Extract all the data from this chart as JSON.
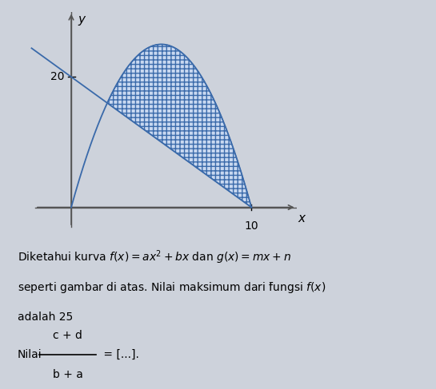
{
  "background_color": "#cdd2db",
  "parabola_color": "#3a6aaa",
  "line_color": "#3a6aaa",
  "fill_facecolor": "#c8d8f0",
  "fill_edgecolor": "#3a6aaa",
  "hatch_pattern": "xxx",
  "x_label": "x",
  "y_label": "y",
  "x_tick_label": "10",
  "y_tick_label": "20",
  "parabola_roots": [
    0,
    10
  ],
  "parabola_max": 25,
  "line_y_intercept": 20,
  "line_x_intercept": 10,
  "x_int1": 2,
  "x_int2": 10,
  "text_line1": "Diketahui kurva $f(x) = ax^2 + bx$ dan $g(x) = mx + n$",
  "text_line2": "seperti gambar di atas. Nilai maksimum dari ḟungsi $f(x)$",
  "text_line3": "adalah 25",
  "text_fraction_num": "c + d",
  "text_fraction_den": "b + a",
  "figsize": [
    5.45,
    4.87
  ],
  "dpi": 100,
  "xlim": [
    -2.5,
    12.5
  ],
  "ylim": [
    -4,
    30
  ],
  "line_width": 1.3,
  "axis_color": "#555555"
}
